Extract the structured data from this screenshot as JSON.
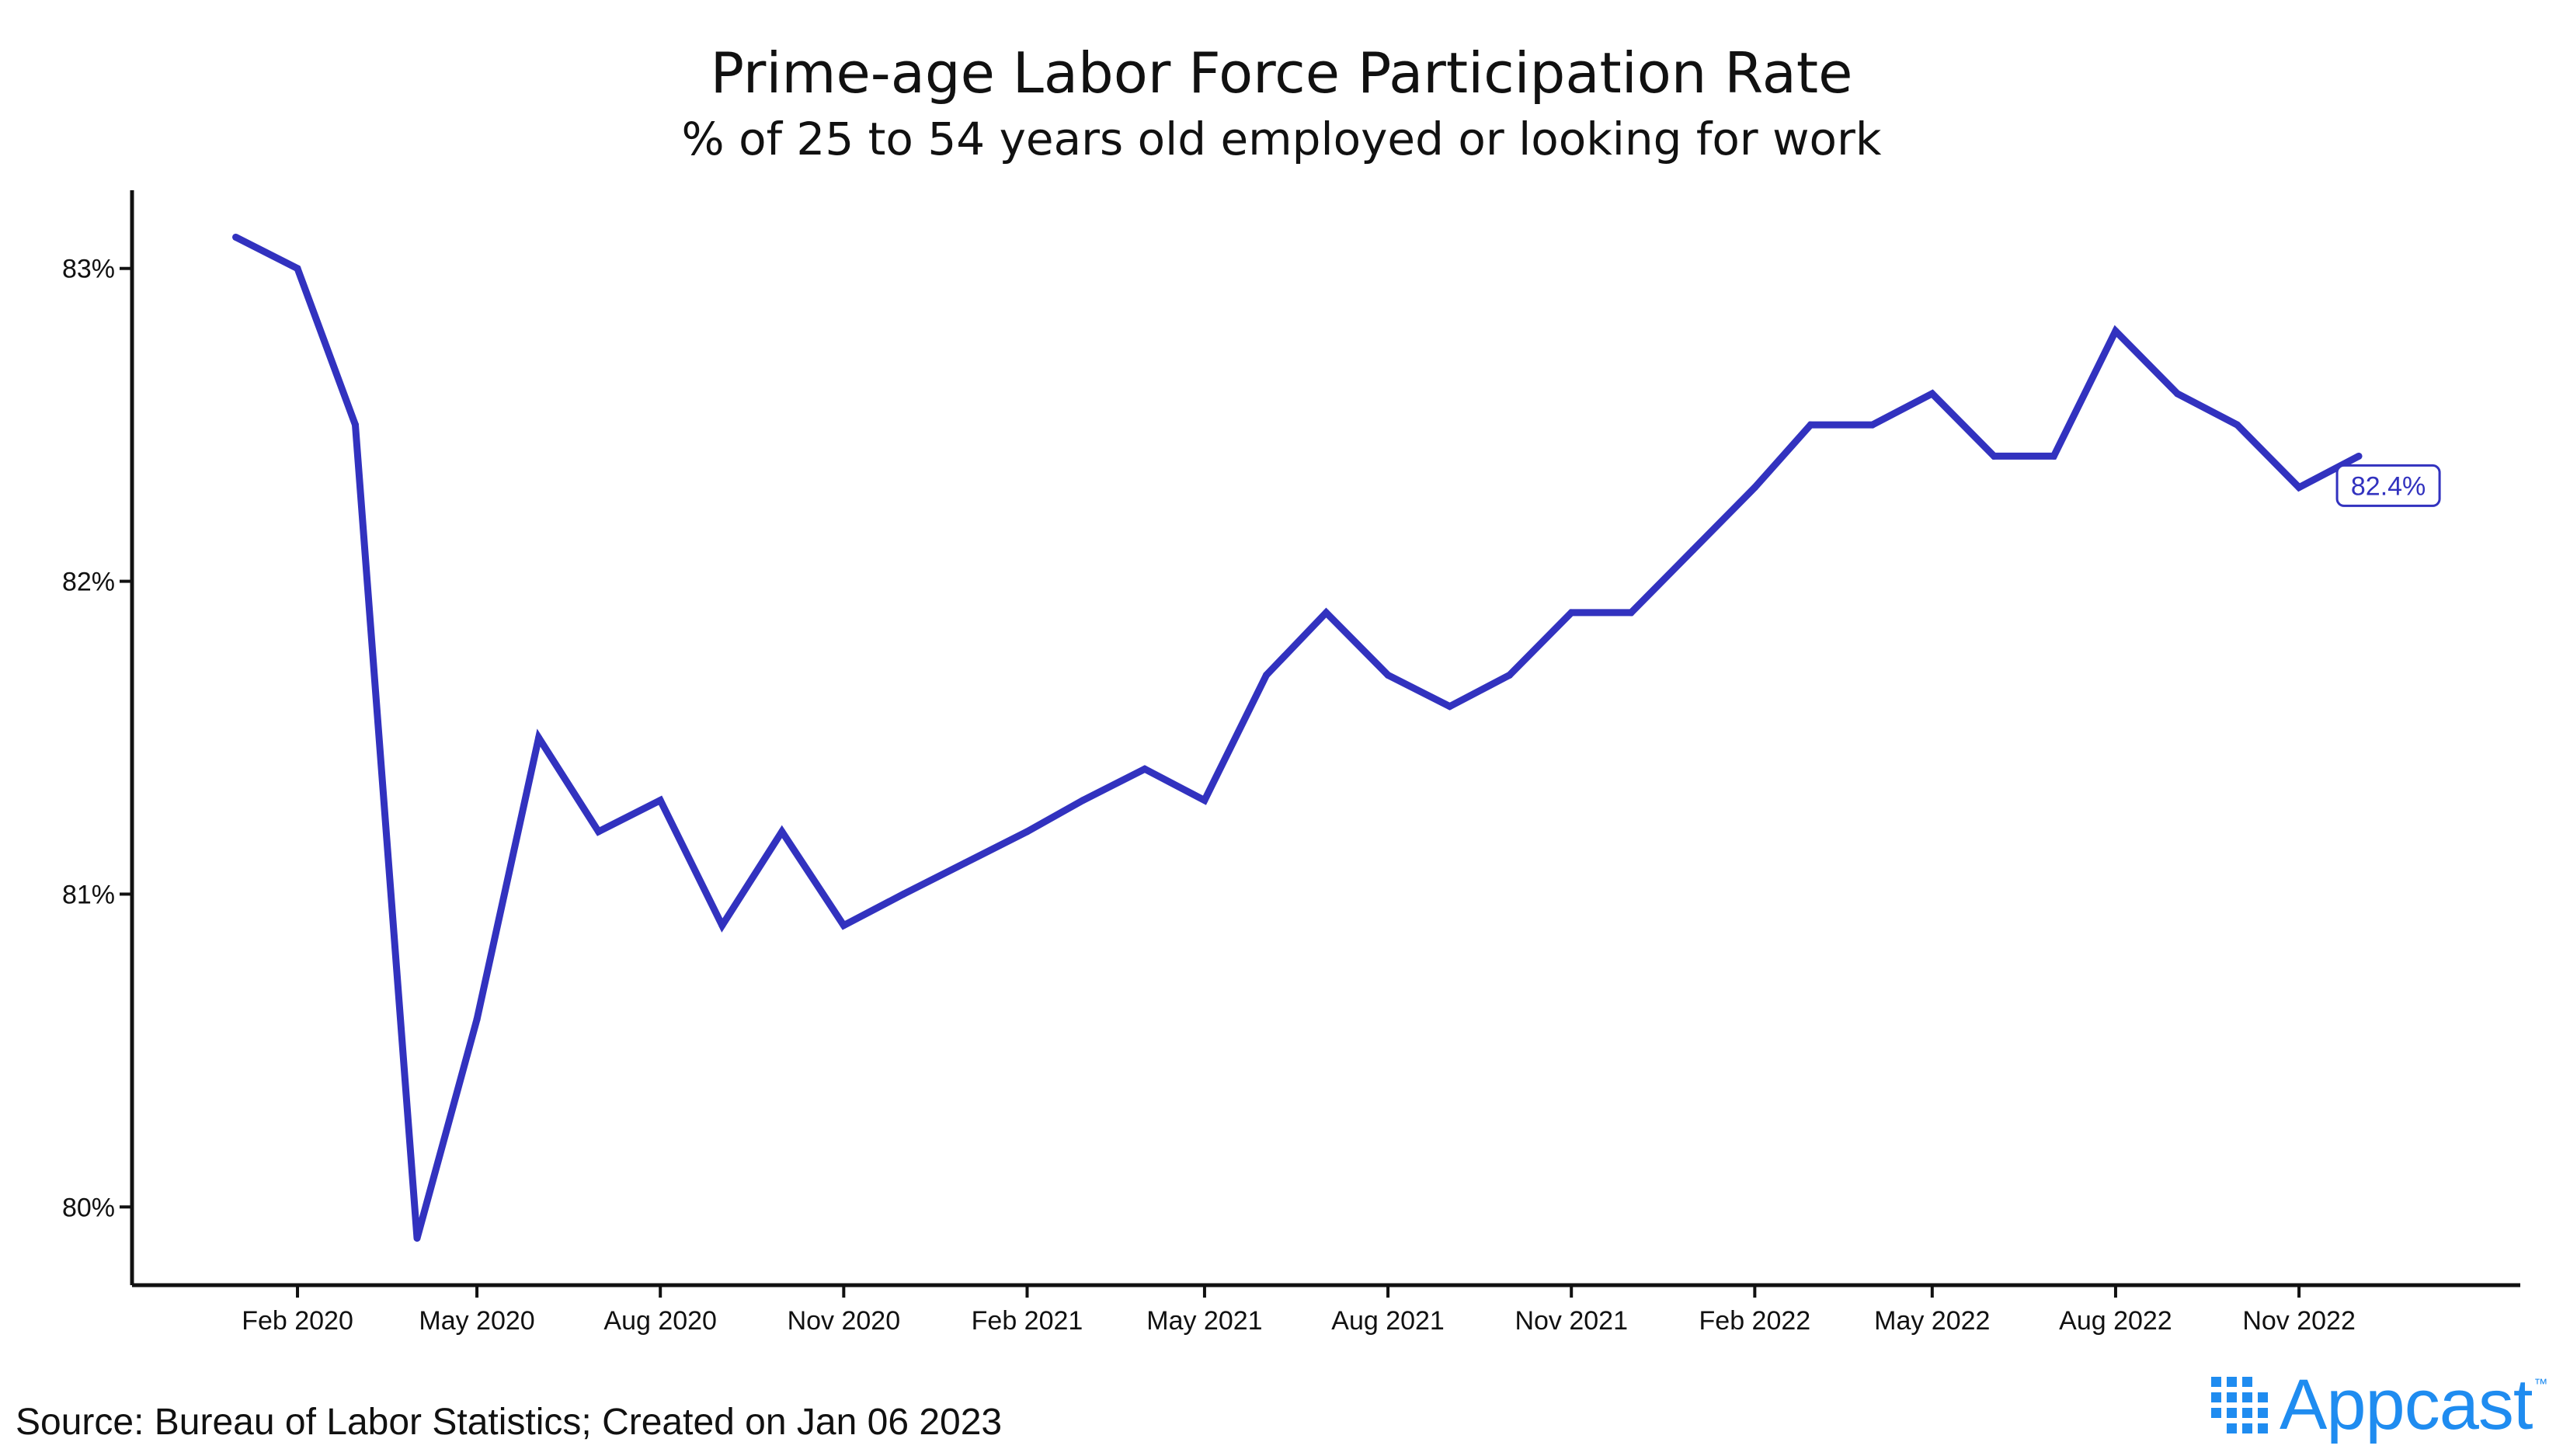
{
  "chart_data": {
    "type": "line",
    "title": "Prime-age Labor Force Participation Rate",
    "subtitle": "% of 25 to 54 years old employed or looking for work",
    "xlabel": "",
    "ylabel": "",
    "x_ticks": [
      "Feb 2020",
      "May 2020",
      "Aug 2020",
      "Nov 2020",
      "Feb 2021",
      "May 2021",
      "Aug 2021",
      "Nov 2021",
      "Feb 2022",
      "May 2022",
      "Aug 2022",
      "Nov 2022"
    ],
    "y_ticks": [
      "80%",
      "81%",
      "82%",
      "83%"
    ],
    "y_tick_values": [
      80,
      81,
      82,
      83
    ],
    "ylim": [
      79.75,
      83.25
    ],
    "xlim": [
      "2019-11-10",
      "2023-02-20"
    ],
    "grid": false,
    "series": [
      {
        "values": [
          {
            "x": "2020-01",
            "y": 83.1
          },
          {
            "x": "2020-02",
            "y": 83.0
          },
          {
            "x": "2020-03",
            "y": 82.5
          },
          {
            "x": "2020-04",
            "y": 79.9
          },
          {
            "x": "2020-05",
            "y": 80.6
          },
          {
            "x": "2020-06",
            "y": 81.5
          },
          {
            "x": "2020-07",
            "y": 81.2
          },
          {
            "x": "2020-08",
            "y": 81.3
          },
          {
            "x": "2020-09",
            "y": 80.9
          },
          {
            "x": "2020-10",
            "y": 81.2
          },
          {
            "x": "2020-11",
            "y": 80.9
          },
          {
            "x": "2020-12",
            "y": 81.0
          },
          {
            "x": "2021-01",
            "y": 81.1
          },
          {
            "x": "2021-02",
            "y": 81.2
          },
          {
            "x": "2021-03",
            "y": 81.3
          },
          {
            "x": "2021-04",
            "y": 81.4
          },
          {
            "x": "2021-05",
            "y": 81.3
          },
          {
            "x": "2021-06",
            "y": 81.7
          },
          {
            "x": "2021-07",
            "y": 81.9
          },
          {
            "x": "2021-08",
            "y": 81.7
          },
          {
            "x": "2021-09",
            "y": 81.6
          },
          {
            "x": "2021-10",
            "y": 81.7
          },
          {
            "x": "2021-11",
            "y": 81.9
          },
          {
            "x": "2021-12",
            "y": 81.9
          },
          {
            "x": "2022-01",
            "y": 82.1
          },
          {
            "x": "2022-02",
            "y": 82.3
          },
          {
            "x": "2022-03",
            "y": 82.5
          },
          {
            "x": "2022-04",
            "y": 82.5
          },
          {
            "x": "2022-05",
            "y": 82.6
          },
          {
            "x": "2022-06",
            "y": 82.4
          },
          {
            "x": "2022-07",
            "y": 82.4
          },
          {
            "x": "2022-08",
            "y": 82.8
          },
          {
            "x": "2022-09",
            "y": 82.6
          },
          {
            "x": "2022-10",
            "y": 82.5
          },
          {
            "x": "2022-11",
            "y": 82.3
          },
          {
            "x": "2022-12",
            "y": 82.4
          }
        ]
      }
    ],
    "annotation": {
      "x": "2022-12",
      "y": 82.4,
      "label": "82.4%"
    },
    "colors": {
      "line": "#3232bf",
      "axis": "#111111",
      "text": "#111111"
    }
  },
  "source_note": "Source: Bureau of Labor Statistics; Created on Jan 06 2023",
  "brand": {
    "name": "Appcast",
    "mark": "™",
    "icon": "appcast-dots-icon",
    "color": "#1f8cf0"
  }
}
